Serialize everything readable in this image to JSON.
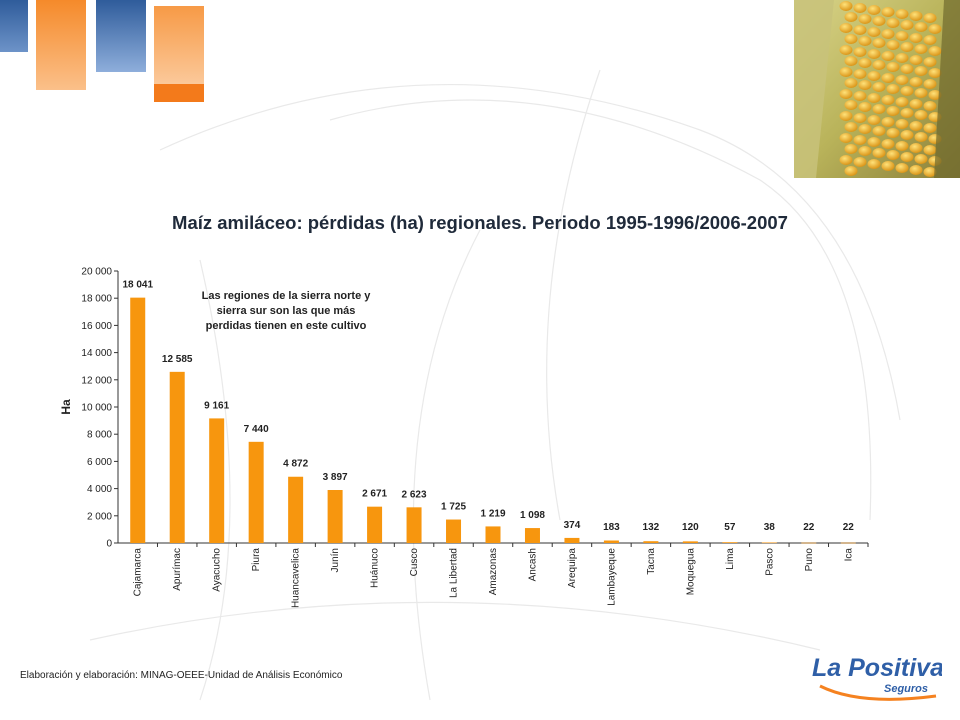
{
  "slide": {
    "source": "Elaboración y elaboración: MINAG-OEEE-Unidad de Análisis Económico",
    "logo": {
      "name": "La Positiva",
      "sub": "Seguros"
    },
    "note": "Las regiones de la sierra norte y sierra sur son las que más perdidas tienen en este cultivo",
    "colors": {
      "bar": "#f7960e",
      "blue": "#3a67a8",
      "orange": "#f58220",
      "text": "#222222"
    }
  },
  "chart_data": {
    "type": "bar",
    "title": "Maíz amiláceo: pérdidas (ha) regionales. Periodo 1995-1996/2006-2007",
    "xlabel": "",
    "ylabel": "Ha",
    "ylim": [
      0,
      20000
    ],
    "ytick_labels": [
      "0",
      "2 000",
      "4 000",
      "6 000",
      "8 000",
      "10 000",
      "12 000",
      "14 000",
      "16 000",
      "18 000",
      "20 000"
    ],
    "categories": [
      "Cajamarca",
      "Apurímac",
      "Ayacucho",
      "Piura",
      "Huancavelica",
      "Junín",
      "Huánuco",
      "Cusco",
      "La Libertad",
      "Amazonas",
      "Ancash",
      "Arequipa",
      "Lambayeque",
      "Tacna",
      "Moquegua",
      "Lima",
      "Pasco",
      "Puno",
      "Ica"
    ],
    "values": [
      18041,
      12585,
      9161,
      7440,
      4872,
      3897,
      2671,
      2623,
      1725,
      1219,
      1098,
      374,
      183,
      132,
      120,
      57,
      38,
      22,
      22
    ],
    "value_labels": [
      "18 041",
      "12 585",
      "9 161",
      "7 440",
      "4 872",
      "3 897",
      "2 671",
      "2 623",
      "1 725",
      "1 219",
      "1 098",
      "374",
      "183",
      "132",
      "120",
      "57",
      "38",
      "22",
      "22"
    ],
    "grid": false,
    "legend": "none"
  }
}
